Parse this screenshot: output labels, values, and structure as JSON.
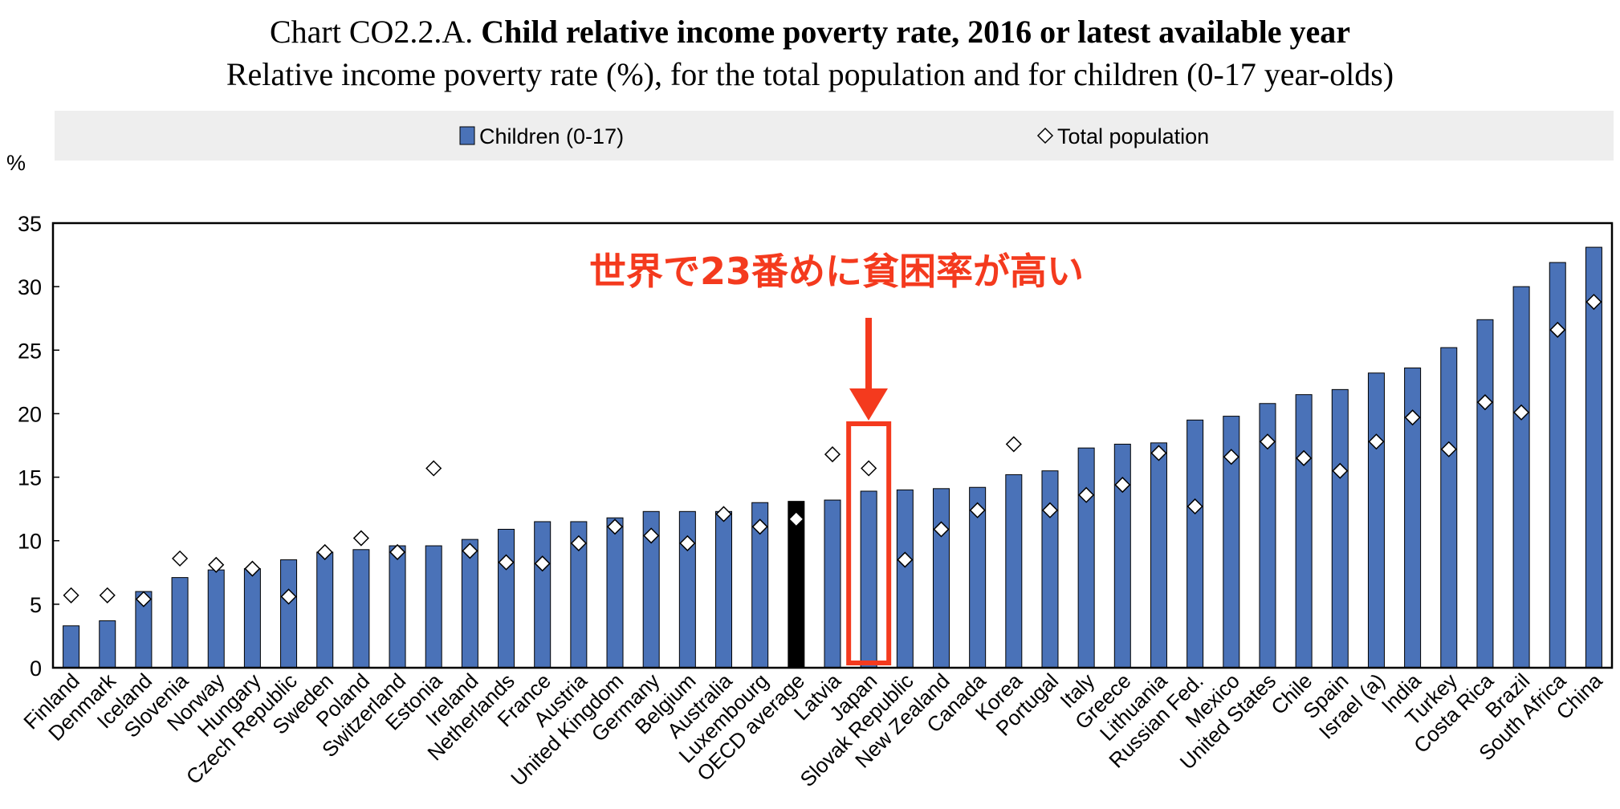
{
  "title": {
    "prefix": "Chart CO2.2.A.",
    "main": "Child relative income poverty rate, 2016 or latest available year",
    "subtitle": "Relative income poverty rate (%), for the total population and for children (0-17 year-olds)"
  },
  "annotation": {
    "text": "世界で23番めに貧困率が高い",
    "highlight_category": "Japan",
    "color": "#f43a1e"
  },
  "chart_data": {
    "type": "bar",
    "ylabel": "%",
    "ylim": [
      0,
      35
    ],
    "yticks": [
      0,
      5,
      10,
      15,
      20,
      25,
      30,
      35
    ],
    "grid": false,
    "legend_position": "top",
    "categories": [
      "Finland",
      "Denmark",
      "Iceland",
      "Slovenia",
      "Norway",
      "Hungary",
      "Czech Republic",
      "Sweden",
      "Poland",
      "Switzerland",
      "Estonia",
      "Ireland",
      "Netherlands",
      "France",
      "Austria",
      "United Kingdom",
      "Germany",
      "Belgium",
      "Australia",
      "Luxembourg",
      "OECD average",
      "Latvia",
      "Japan",
      "Slovak Republic",
      "New Zealand",
      "Canada",
      "Korea",
      "Portugal",
      "Italy",
      "Greece",
      "Lithuania",
      "Russian Fed.",
      "Mexico",
      "United States",
      "Chile",
      "Spain",
      "Israel (a)",
      "India",
      "Turkey",
      "Costa Rica",
      "Brazil",
      "South Africa",
      "China"
    ],
    "highlight_category": "OECD average",
    "series": [
      {
        "name": "Children (0-17)",
        "kind": "bar",
        "color": "#4a72b8",
        "highlight_color": "#000000",
        "values": [
          3.3,
          3.7,
          6.0,
          7.1,
          7.7,
          7.8,
          8.5,
          9.1,
          9.3,
          9.6,
          9.6,
          10.1,
          10.9,
          11.5,
          11.5,
          11.8,
          12.3,
          12.3,
          12.3,
          13.0,
          13.1,
          13.2,
          13.9,
          14.0,
          14.1,
          14.2,
          15.2,
          15.5,
          17.3,
          17.6,
          17.7,
          19.5,
          19.8,
          20.8,
          21.5,
          21.9,
          23.2,
          23.6,
          25.2,
          27.4,
          30.0,
          31.9,
          33.1
        ]
      },
      {
        "name": "Total population",
        "kind": "marker",
        "marker": "diamond",
        "values": [
          5.7,
          5.7,
          5.4,
          8.6,
          8.1,
          7.8,
          5.6,
          9.1,
          10.2,
          9.1,
          15.7,
          9.2,
          8.3,
          8.2,
          9.8,
          11.1,
          10.4,
          9.8,
          12.1,
          11.1,
          11.7,
          16.8,
          15.7,
          8.5,
          10.9,
          12.4,
          17.6,
          12.4,
          13.6,
          14.4,
          16.9,
          12.7,
          16.6,
          17.8,
          16.5,
          15.5,
          17.8,
          19.7,
          17.2,
          20.9,
          20.1,
          26.6,
          28.8
        ]
      }
    ]
  }
}
